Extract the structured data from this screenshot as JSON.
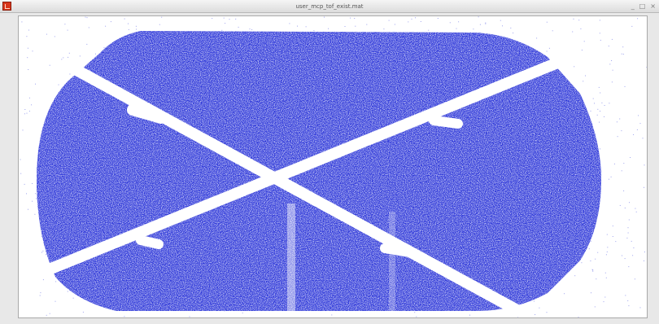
{
  "window": {
    "title": "user_mcp_tof_exist.mat",
    "controls": {
      "minimize": "_",
      "maximize": "□",
      "close": "×"
    }
  },
  "plot": {
    "point_color": "#2b35d8"
  }
}
